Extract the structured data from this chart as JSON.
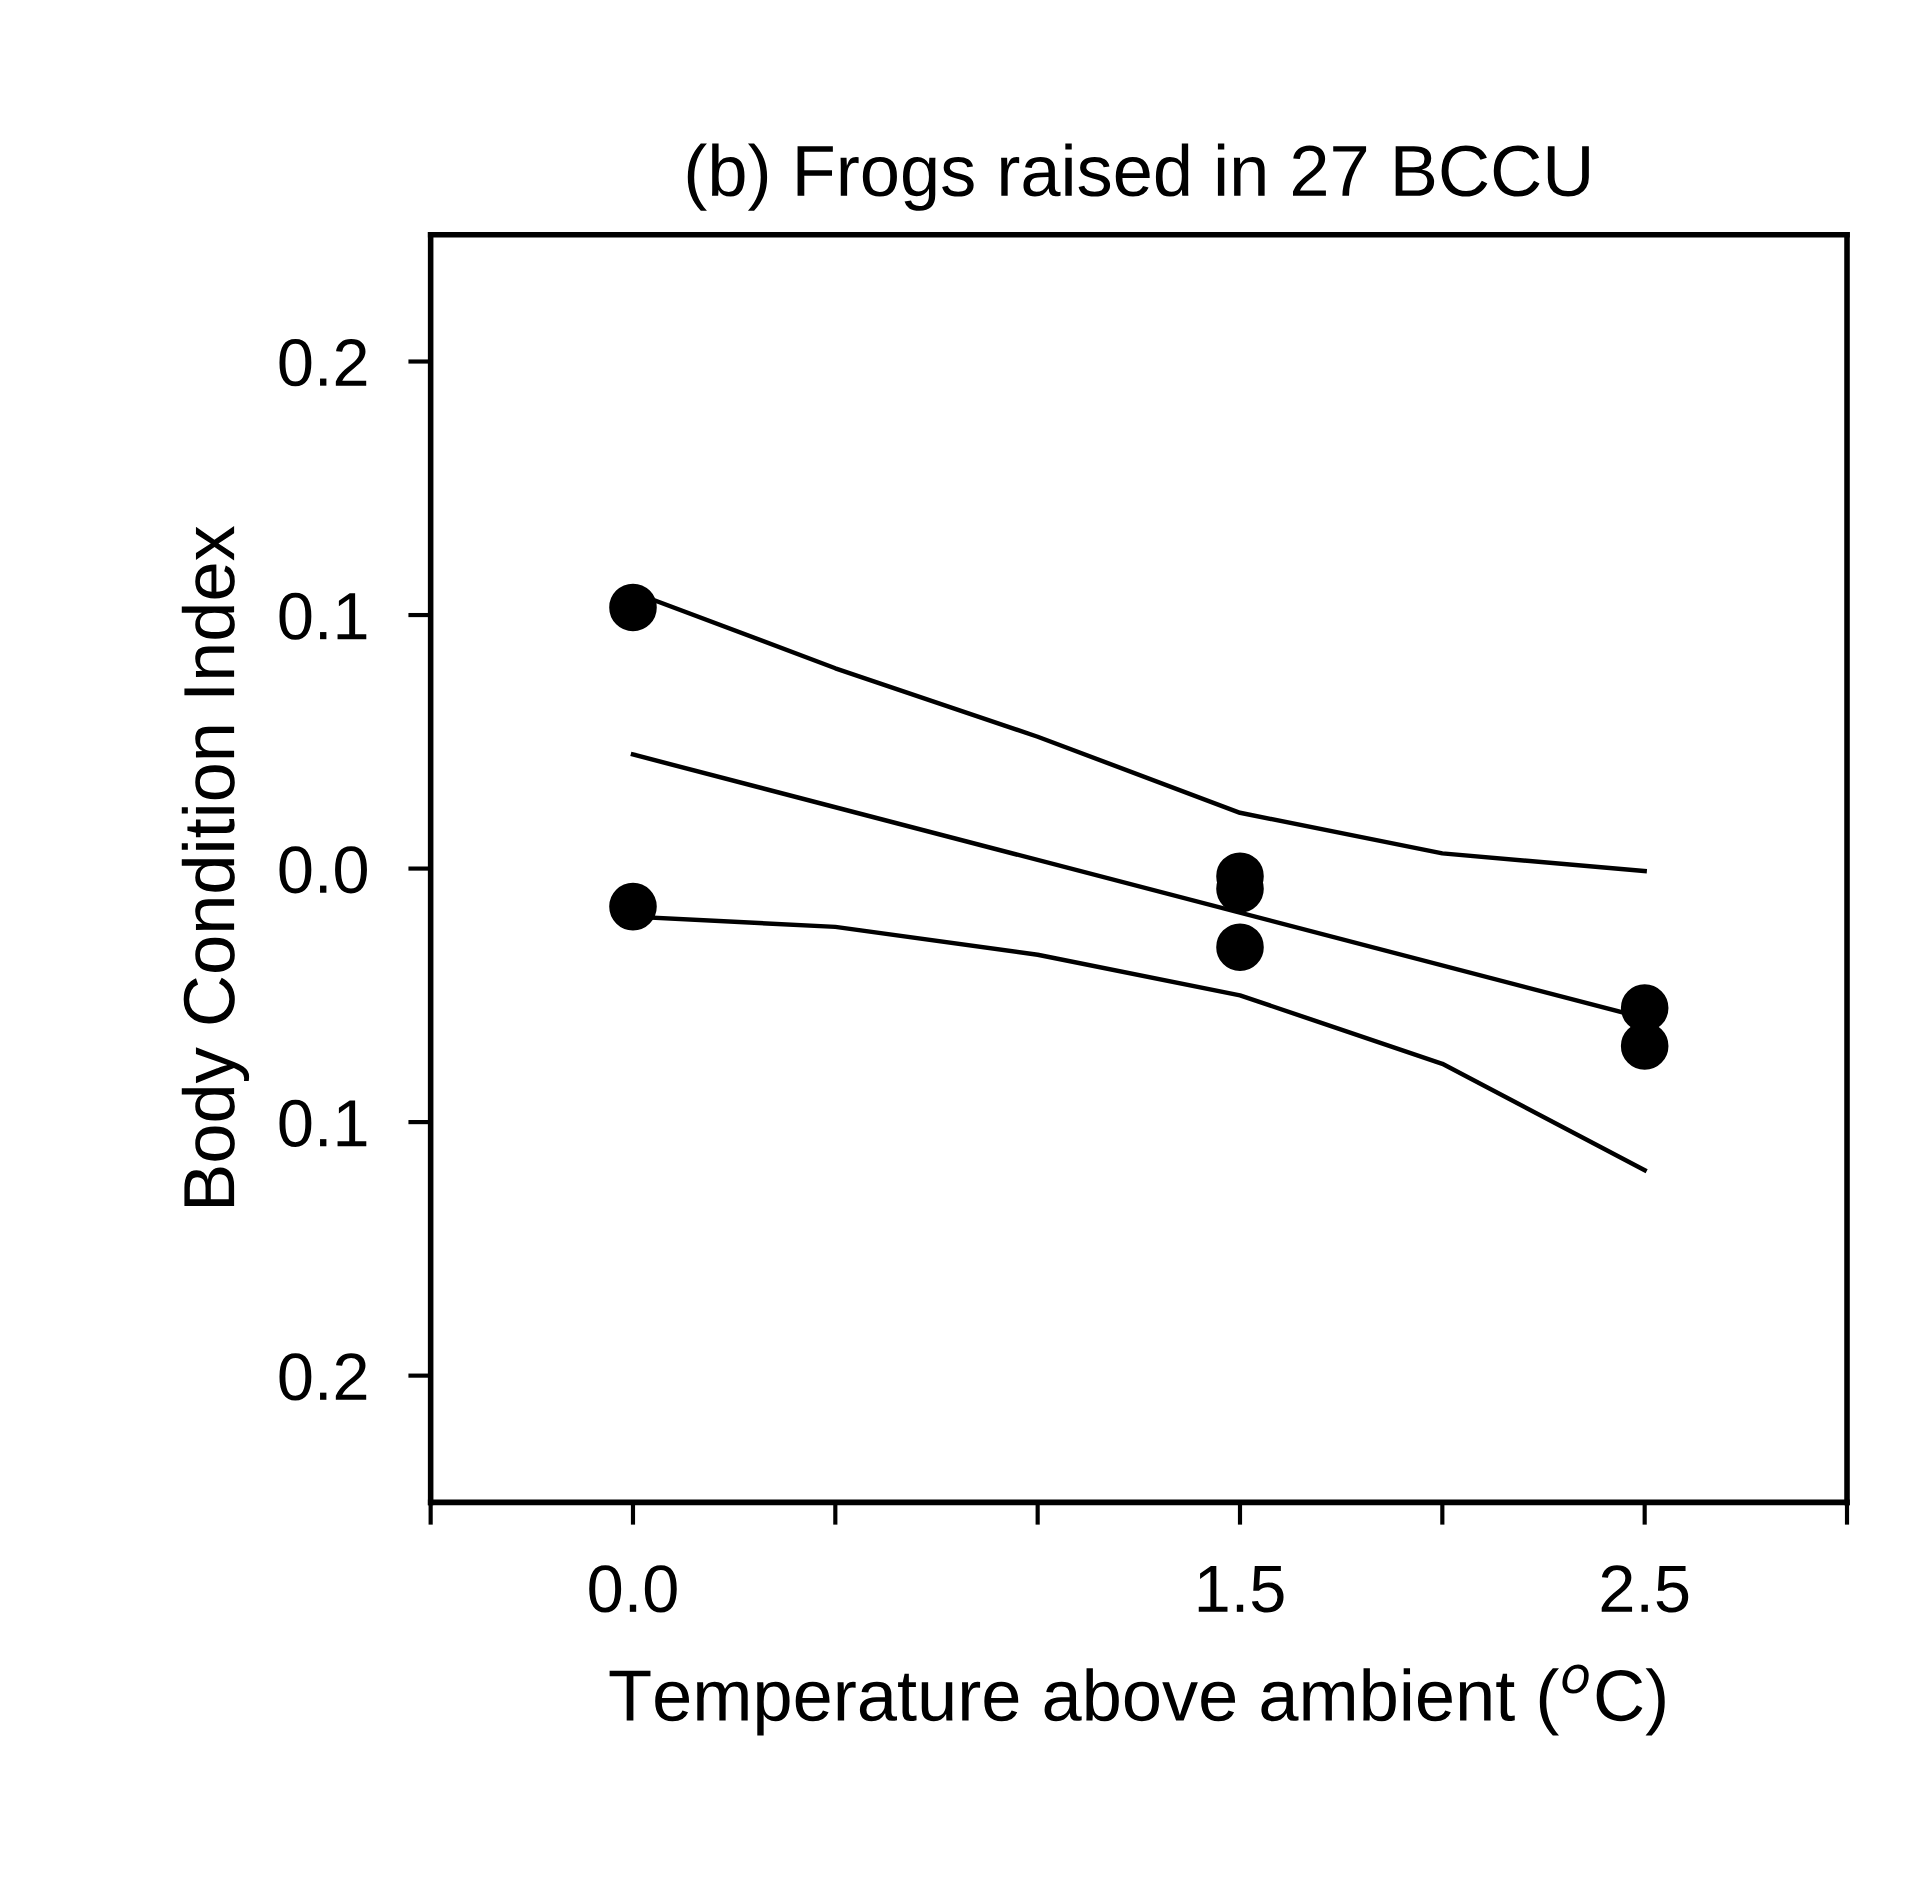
{
  "chart_data": {
    "type": "scatter",
    "title": "(b) Frogs raised in 27 BCCU",
    "xlabel": "Temperature above ambient ($^{o}$C)",
    "ylabel": "Body Condition Index",
    "x": [
      0,
      0,
      1.5,
      1.5,
      1.5,
      2.5,
      2.5
    ],
    "series": [
      {
        "color": "#000000",
        "marker": "circle",
        "values": [
          0.103,
          -0.015,
          -0.003,
          -0.008,
          -0.031,
          -0.055,
          -0.07
        ]
      },
      {
        "type": "line",
        "color": "#000000",
        "x": [
          0,
          2.5
        ],
        "values": [
          0.045,
          -0.059
        ]
      },
      {
        "type": "line",
        "color": "#000000",
        "x": [
          0,
          0.5,
          1.0,
          1.5,
          2.0,
          2.5
        ],
        "values": [
          0.109,
          0.079,
          0.052,
          0.022,
          0.006,
          -0.001
        ]
      },
      {
        "type": "line",
        "color": "#000000",
        "x": [
          0,
          0.5,
          1.0,
          1.5,
          2.0,
          2.5
        ],
        "values": [
          -0.019,
          -0.023,
          -0.034,
          -0.05,
          -0.077,
          -0.119
        ]
      }
    ],
    "marker": "none",
    "xlim": [
      -0.5,
      3.0
    ],
    "xticks": [
      {
        "value": -0.5,
        "label": null
      },
      {
        "value": 0.0,
        "label": "0.0"
      },
      {
        "value": 0.5,
        "label": null
      },
      {
        "value": 1.0,
        "label": null
      },
      1.5,
      {
        "value": 2.0,
        "label": null
      },
      2.5,
      {
        "value": 3.0,
        "label": null
      }
    ],
    "ylim": [
      -0.25,
      0.25
    ],
    "yticks": [
      {
        "value": -0.2,
        "label": "0.2"
      },
      {
        "value": -0.1,
        "label": "0.1"
      },
      {
        "value": 0.0,
        "label": "0.0"
      },
      0.1,
      0.2
    ],
    "grid": false,
    "legend": false
  }
}
